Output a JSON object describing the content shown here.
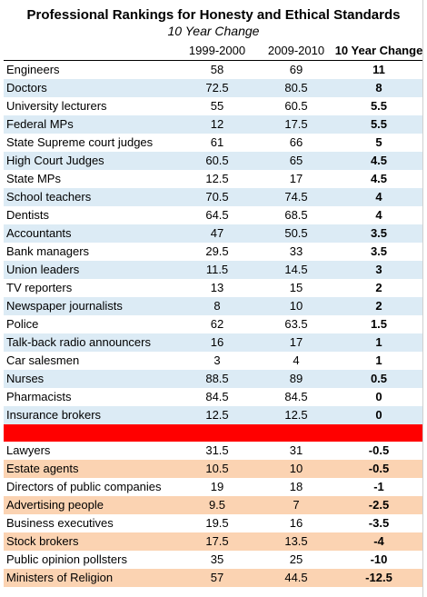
{
  "title": "Professional Rankings for Honesty and Ethical Standards",
  "subtitle": "10 Year Change",
  "columns": [
    "",
    "1999-2000",
    "2009-2010",
    "10 Year Change"
  ],
  "rows": [
    {
      "name": "Engineers",
      "a": "58",
      "b": "69",
      "c": "11"
    },
    {
      "name": "Doctors",
      "a": "72.5",
      "b": "80.5",
      "c": "8"
    },
    {
      "name": "University lecturers",
      "a": "55",
      "b": "60.5",
      "c": "5.5"
    },
    {
      "name": "Federal MPs",
      "a": "12",
      "b": "17.5",
      "c": "5.5"
    },
    {
      "name": "State Supreme court judges",
      "a": "61",
      "b": "66",
      "c": "5"
    },
    {
      "name": "High Court Judges",
      "a": "60.5",
      "b": "65",
      "c": "4.5"
    },
    {
      "name": "State MPs",
      "a": "12.5",
      "b": "17",
      "c": "4.5"
    },
    {
      "name": "School teachers",
      "a": "70.5",
      "b": "74.5",
      "c": "4"
    },
    {
      "name": "Dentists",
      "a": "64.5",
      "b": "68.5",
      "c": "4"
    },
    {
      "name": "Accountants",
      "a": "47",
      "b": "50.5",
      "c": "3.5"
    },
    {
      "name": "Bank managers",
      "a": "29.5",
      "b": "33",
      "c": "3.5"
    },
    {
      "name": "Union leaders",
      "a": "11.5",
      "b": "14.5",
      "c": "3"
    },
    {
      "name": "TV reporters",
      "a": "13",
      "b": "15",
      "c": "2"
    },
    {
      "name": "Newspaper journalists",
      "a": "8",
      "b": "10",
      "c": "2"
    },
    {
      "name": "Police",
      "a": "62",
      "b": "63.5",
      "c": "1.5"
    },
    {
      "name": "Talk-back radio announcers",
      "a": "16",
      "b": "17",
      "c": "1"
    },
    {
      "name": "Car salesmen",
      "a": "3",
      "b": "4",
      "c": "1"
    },
    {
      "name": "Nurses",
      "a": "88.5",
      "b": "89",
      "c": "0.5"
    },
    {
      "name": "Pharmacists",
      "a": "84.5",
      "b": "84.5",
      "c": "0"
    },
    {
      "name": "Insurance brokers",
      "a": "12.5",
      "b": "12.5",
      "c": "0"
    },
    {
      "name": "Lawyers",
      "a": "31.5",
      "b": "31",
      "c": "-0.5"
    },
    {
      "name": "Estate agents",
      "a": "10.5",
      "b": "10",
      "c": "-0.5"
    },
    {
      "name": "Directors of public companies",
      "a": "19",
      "b": "18",
      "c": "-1"
    },
    {
      "name": "Advertising people",
      "a": "9.5",
      "b": "7",
      "c": "-2.5"
    },
    {
      "name": "Business executives",
      "a": "19.5",
      "b": "16",
      "c": "-3.5"
    },
    {
      "name": "Stock brokers",
      "a": "17.5",
      "b": "13.5",
      "c": "-4"
    },
    {
      "name": "Public opinion pollsters",
      "a": "35",
      "b": "25",
      "c": "-10"
    },
    {
      "name": "Ministers of Religion",
      "a": "57",
      "b": "44.5",
      "c": "-12.5"
    }
  ],
  "colors": {
    "positive_stripe": "#dcebf5",
    "negative_stripe": "#fbd3b2",
    "divider": "#ff0000"
  }
}
